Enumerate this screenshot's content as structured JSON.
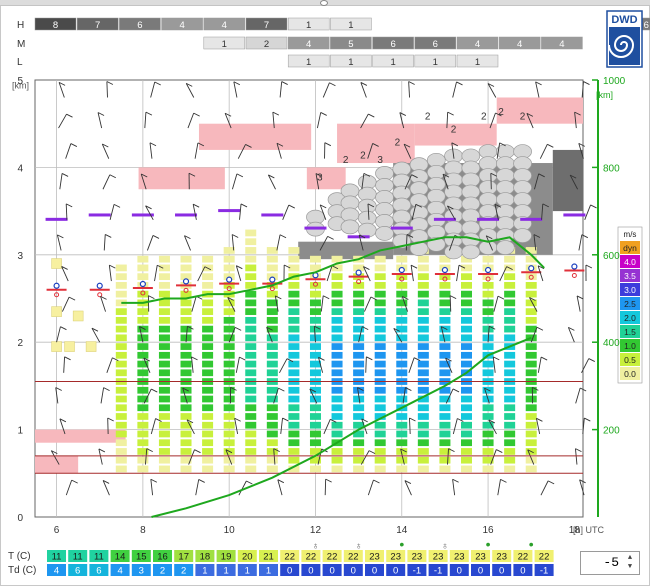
{
  "logo_text": "DWD",
  "rows": {
    "H": {
      "label": "H",
      "cells": [
        "8",
        "7",
        "6",
        "4",
        "4",
        "7",
        "1",
        "1",
        "",
        "",
        "",
        "",
        "",
        "",
        "6"
      ]
    },
    "M": {
      "label": "M",
      "cells": [
        "",
        "",
        "",
        "",
        "1",
        "2",
        "4",
        "5",
        "6",
        "6",
        "4",
        "4",
        "4",
        "",
        ""
      ]
    },
    "L": {
      "label": "L",
      "cells": [
        "",
        "",
        "",
        "",
        "",
        "",
        "1",
        "1",
        "1",
        "1",
        "1",
        "",
        "",
        "",
        ""
      ]
    }
  },
  "axes": {
    "left_unit": "[km]",
    "right_unit": "[km]",
    "x_unit": "[h] UTC",
    "left_ticks": [
      "0",
      "1",
      "2",
      "3",
      "4",
      "5"
    ],
    "right_ticks": [
      "200",
      "400",
      "600",
      "800",
      "1000"
    ],
    "x_ticks": [
      "6",
      "8",
      "10",
      "12",
      "14",
      "16",
      "18"
    ]
  },
  "legend": {
    "title": "m/s",
    "items": [
      {
        "label": "dyn",
        "color": "#f0a020"
      },
      {
        "label": "4.0",
        "color": "#c800c8"
      },
      {
        "label": "3.5",
        "color": "#9632d2"
      },
      {
        "label": "3.0",
        "color": "#3c3cdc"
      },
      {
        "label": "2.5",
        "color": "#1e96f0"
      },
      {
        "label": "2.0",
        "color": "#14c8dc"
      },
      {
        "label": "1.5",
        "color": "#20d296"
      },
      {
        "label": "1.0",
        "color": "#32c832"
      },
      {
        "label": "0.5",
        "color": "#c8f03c"
      },
      {
        "label": "0.0",
        "color": "#f0f0a0"
      }
    ]
  },
  "bottom": {
    "t_label": "T  (C)",
    "td_label": "Td (C)",
    "t_values": [
      "11",
      "11",
      "11",
      "14",
      "15",
      "16",
      "17",
      "18",
      "19",
      "20",
      "21",
      "22",
      "22",
      "22",
      "22",
      "23",
      "23",
      "23",
      "23",
      "23",
      "23",
      "23",
      "22",
      "22"
    ],
    "td_values": [
      "4",
      "6",
      "6",
      "4",
      "3",
      "2",
      "2",
      "1",
      "1",
      "1",
      "1",
      "0",
      "0",
      "0",
      "0",
      "0",
      "0",
      "-1",
      "-1",
      "0",
      "0",
      "0",
      "0",
      "-1"
    ]
  },
  "spinner_value": "-5",
  "chart_data": {
    "type": "meteogram",
    "x_range_hours_utc": [
      5.5,
      18.2
    ],
    "left_axis_km": [
      0,
      5
    ],
    "right_axis_km": [
      0,
      1000
    ],
    "columns_hours": [
      6,
      6.5,
      7,
      7.5,
      8,
      8.5,
      9,
      9.5,
      10,
      10.5,
      11,
      11.5,
      12,
      12.5,
      13,
      13.5,
      14,
      14.5,
      15,
      15.5,
      16,
      16.5,
      17,
      17.5
    ],
    "convective_top_km": [
      null,
      null,
      null,
      2.9,
      3.0,
      3.0,
      3.0,
      3.0,
      3.1,
      3.25,
      3.05,
      3.05,
      3.0,
      3.0,
      3.0,
      3.0,
      3.0,
      3.05,
      3.0,
      3.0,
      3.0,
      3.05,
      3.05,
      null
    ],
    "green_curve_km": [
      [
        7.5,
        2.45
      ],
      [
        8,
        2.45
      ],
      [
        8.5,
        2.5
      ],
      [
        9,
        2.5
      ],
      [
        9.5,
        2.55
      ],
      [
        10,
        2.55
      ],
      [
        10.5,
        2.6
      ],
      [
        11,
        2.65
      ],
      [
        11.5,
        2.75
      ],
      [
        12,
        2.8
      ],
      [
        12.5,
        2.9
      ],
      [
        13,
        2.95
      ],
      [
        13.5,
        3.05
      ],
      [
        14,
        3.1
      ],
      [
        14.5,
        3.15
      ],
      [
        15,
        3.2
      ],
      [
        15.5,
        3.2
      ],
      [
        16,
        3.15
      ],
      [
        16.5,
        3.2
      ],
      [
        17,
        3.0
      ],
      [
        17.3,
        2.85
      ]
    ],
    "lower_line_right_km": [
      [
        8.2,
        0
      ],
      [
        9,
        20
      ],
      [
        10,
        50
      ],
      [
        11,
        90
      ],
      [
        12,
        140
      ],
      [
        13,
        200
      ],
      [
        14,
        250
      ],
      [
        15,
        300
      ],
      [
        15.5,
        330
      ],
      [
        16,
        370
      ],
      [
        16.5,
        390
      ],
      [
        17,
        410
      ]
    ],
    "inversion_lines_km": [
      1.55,
      0.7,
      0.5
    ],
    "pink_layers": [
      {
        "x0": 5.5,
        "x1": 7.6,
        "y0": 0.85,
        "y1": 1.0
      },
      {
        "x0": 5.5,
        "x1": 6.5,
        "y0": 0.5,
        "y1": 0.7
      },
      {
        "x0": 7.9,
        "x1": 9.9,
        "y0": 3.75,
        "y1": 4.0
      },
      {
        "x0": 9.3,
        "x1": 11.9,
        "y0": 4.2,
        "y1": 4.5
      },
      {
        "x0": 11.8,
        "x1": 12.7,
        "y0": 3.75,
        "y1": 4.0
      },
      {
        "x0": 12.5,
        "x1": 14.3,
        "y0": 4.05,
        "y1": 4.5
      },
      {
        "x0": 14.3,
        "x1": 16.2,
        "y0": 4.25,
        "y1": 4.5
      },
      {
        "x0": 16.2,
        "x1": 18.2,
        "y0": 4.5,
        "y1": 4.8
      }
    ],
    "purple_levels_km": [
      [
        6,
        3.4
      ],
      [
        7,
        3.45
      ],
      [
        8,
        3.45
      ],
      [
        9,
        3.45
      ],
      [
        10,
        3.5
      ],
      [
        11,
        3.45
      ],
      [
        12,
        3.3
      ],
      [
        13,
        3.2
      ],
      [
        14,
        3.3
      ],
      [
        15,
        3.4
      ],
      [
        16,
        3.4
      ],
      [
        17,
        3.4
      ],
      [
        18,
        3.45
      ]
    ],
    "parcel_marks_km": [
      [
        6,
        2.6
      ],
      [
        7,
        2.6
      ],
      [
        8,
        2.62
      ],
      [
        9,
        2.65
      ],
      [
        10,
        2.67
      ],
      [
        11,
        2.67
      ],
      [
        12,
        2.72
      ],
      [
        13,
        2.75
      ],
      [
        14,
        2.78
      ],
      [
        15,
        2.78
      ],
      [
        16,
        2.78
      ],
      [
        17,
        2.8
      ],
      [
        18,
        2.82
      ]
    ],
    "cloud_labels": [
      {
        "x": 12.1,
        "y": 3.85,
        "text": "3"
      },
      {
        "x": 12.7,
        "y": 4.05,
        "text": "2"
      },
      {
        "x": 13.1,
        "y": 4.1,
        "text": "2"
      },
      {
        "x": 13.5,
        "y": 4.05,
        "text": "3"
      },
      {
        "x": 13.9,
        "y": 4.25,
        "text": "2"
      },
      {
        "x": 14.6,
        "y": 4.55,
        "text": "2"
      },
      {
        "x": 15.2,
        "y": 4.4,
        "text": "2"
      },
      {
        "x": 15.9,
        "y": 4.55,
        "text": "2"
      },
      {
        "x": 16.3,
        "y": 4.6,
        "text": "2"
      },
      {
        "x": 16.8,
        "y": 4.55,
        "text": "2"
      }
    ]
  }
}
